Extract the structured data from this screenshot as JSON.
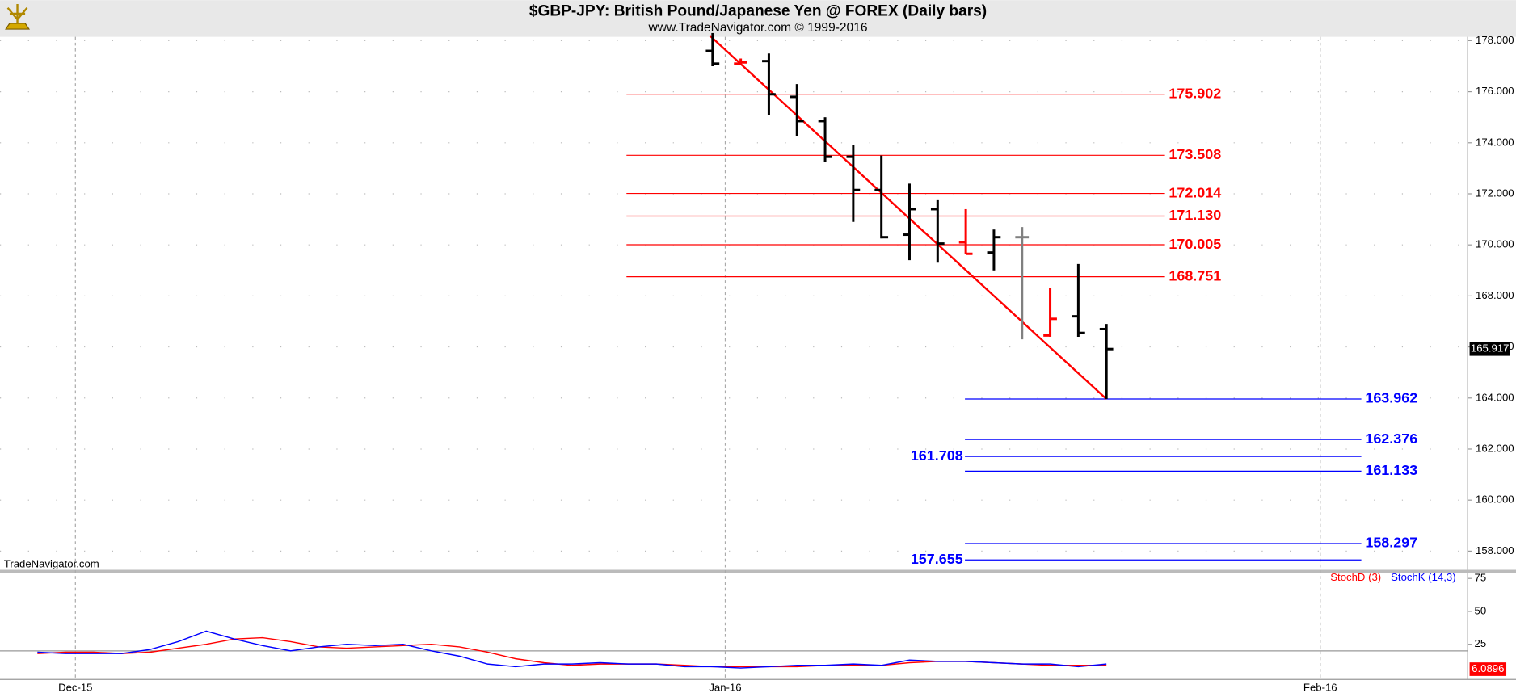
{
  "chart_data": [
    {
      "type": "ohlc",
      "title": "$GBP-JPY:  British Pound/Japanese Yen @ FOREX  (Daily bars)",
      "subtitle": "www.TradeNavigator.com © 1999-2016",
      "watermark": "TradeNavigator.com",
      "categories": [
        null,
        null,
        null,
        null,
        null,
        null,
        null,
        null,
        null,
        null,
        null,
        null,
        null,
        null,
        null
      ],
      "open": [
        177.6,
        177.1,
        177.2,
        175.8,
        174.85,
        173.45,
        172.15,
        170.4,
        171.4,
        170.1,
        169.7,
        170.3,
        166.45,
        167.2,
        166.7
      ],
      "high": [
        178.3,
        177.3,
        177.5,
        176.3,
        175.0,
        173.9,
        173.5,
        172.4,
        171.75,
        171.4,
        170.6,
        170.7,
        168.3,
        169.25,
        166.9
      ],
      "low": [
        177.0,
        177.1,
        175.1,
        174.25,
        173.25,
        170.9,
        170.25,
        169.4,
        169.3,
        169.65,
        169.0,
        166.3,
        166.4,
        166.4,
        163.962
      ],
      "close": [
        177.1,
        177.15,
        175.9,
        174.85,
        173.45,
        172.15,
        170.3,
        171.4,
        170.05,
        169.65,
        170.3,
        170.3,
        167.1,
        166.55,
        165.917
      ],
      "colors": [
        "#000000",
        "#ff0000",
        "#000000",
        "#000000",
        "#000000",
        "#000000",
        "#000000",
        "#000000",
        "#000000",
        "#ff0000",
        "#000000",
        "#808080",
        "#ff0000",
        "#000000",
        "#000000"
      ],
      "trendline": {
        "color": "#ff0000",
        "x": [
          -0.1,
          14
        ],
        "y": [
          178.2,
          163.962
        ]
      },
      "resistance_levels": {
        "color": "#ff0000",
        "xspan": [
          -3.06,
          16.08
        ],
        "values": [
          175.902,
          173.508,
          172.014,
          171.13,
          170.005,
          168.751
        ],
        "value_labels": [
          "175.902",
          "173.508",
          "172.014",
          "171.130",
          "170.005",
          "168.751"
        ]
      },
      "support_levels": {
        "color": "#0000ff",
        "xspan": [
          8.97,
          23.06
        ],
        "values": [
          163.962,
          162.376,
          161.708,
          161.133,
          158.297,
          157.655
        ],
        "value_labels": [
          "163.962",
          "162.376",
          "161.708",
          "161.133",
          "158.297",
          "157.655"
        ],
        "label_sides": [
          "right",
          "right",
          "left",
          "right",
          "right",
          "left"
        ]
      },
      "last_label": {
        "value": 165.917,
        "label": "165.917"
      },
      "xlim": [
        -25.33,
        26.84
      ],
      "xticks": [
        {
          "value": -22.65,
          "label": "Dec-15"
        },
        {
          "value": 0.45,
          "label": "Jan-16"
        },
        {
          "value": 21.6,
          "label": "Feb-16"
        }
      ],
      "ylim": [
        157.25,
        178.15
      ],
      "yticks": [
        {
          "value": 158,
          "label": "158.000"
        },
        {
          "value": 160,
          "label": "160.000"
        },
        {
          "value": 162,
          "label": "162.000"
        },
        {
          "value": 164,
          "label": "164.000"
        },
        {
          "value": 166,
          "label": "166.000"
        },
        {
          "value": 168,
          "label": "168.000"
        },
        {
          "value": 170,
          "label": "170.000"
        },
        {
          "value": 172,
          "label": "172.000"
        },
        {
          "value": 174,
          "label": "174.000"
        },
        {
          "value": 176,
          "label": "176.000"
        },
        {
          "value": 178,
          "label": "178.000"
        }
      ],
      "grid": true
    },
    {
      "type": "line",
      "x": [
        -24,
        -23,
        -22,
        -21,
        -20,
        -19,
        -18,
        -17,
        -16,
        -15,
        -14,
        -13,
        -12,
        -11,
        -10,
        -9,
        -8,
        -7,
        -6,
        -5,
        -4,
        -3,
        -2,
        -1,
        0,
        1,
        2,
        3,
        4,
        5,
        6,
        7,
        8,
        9,
        10,
        11,
        12,
        13,
        14
      ],
      "series": [
        {
          "name": "StochD (3)",
          "color": "#ff0000",
          "values": [
            18,
            19,
            19,
            18,
            19,
            22,
            25,
            29,
            30,
            27,
            23,
            22,
            23,
            24,
            25,
            23,
            19,
            14,
            11,
            9,
            10,
            10,
            10,
            9,
            8,
            8,
            8,
            8,
            9,
            9,
            9,
            11,
            12,
            12,
            11,
            10,
            9,
            9,
            9
          ]
        },
        {
          "name": "StochK (14,3)",
          "color": "#0000ff",
          "values": [
            19,
            18,
            18,
            18,
            21,
            27,
            35,
            29,
            24,
            20,
            23,
            25,
            24,
            25,
            20,
            16,
            10,
            8,
            10,
            10,
            11,
            10,
            10,
            8,
            8,
            7,
            8,
            9,
            9,
            10,
            9,
            13,
            12,
            12,
            11,
            10,
            10,
            8,
            10
          ]
        }
      ],
      "reference_line": 20,
      "last_label": {
        "value": 6.0896,
        "label": "6.0896"
      },
      "xlim": [
        -25.33,
        26.84
      ],
      "ylim": [
        -1,
        79
      ],
      "yticks": [
        25,
        50,
        75
      ]
    }
  ]
}
